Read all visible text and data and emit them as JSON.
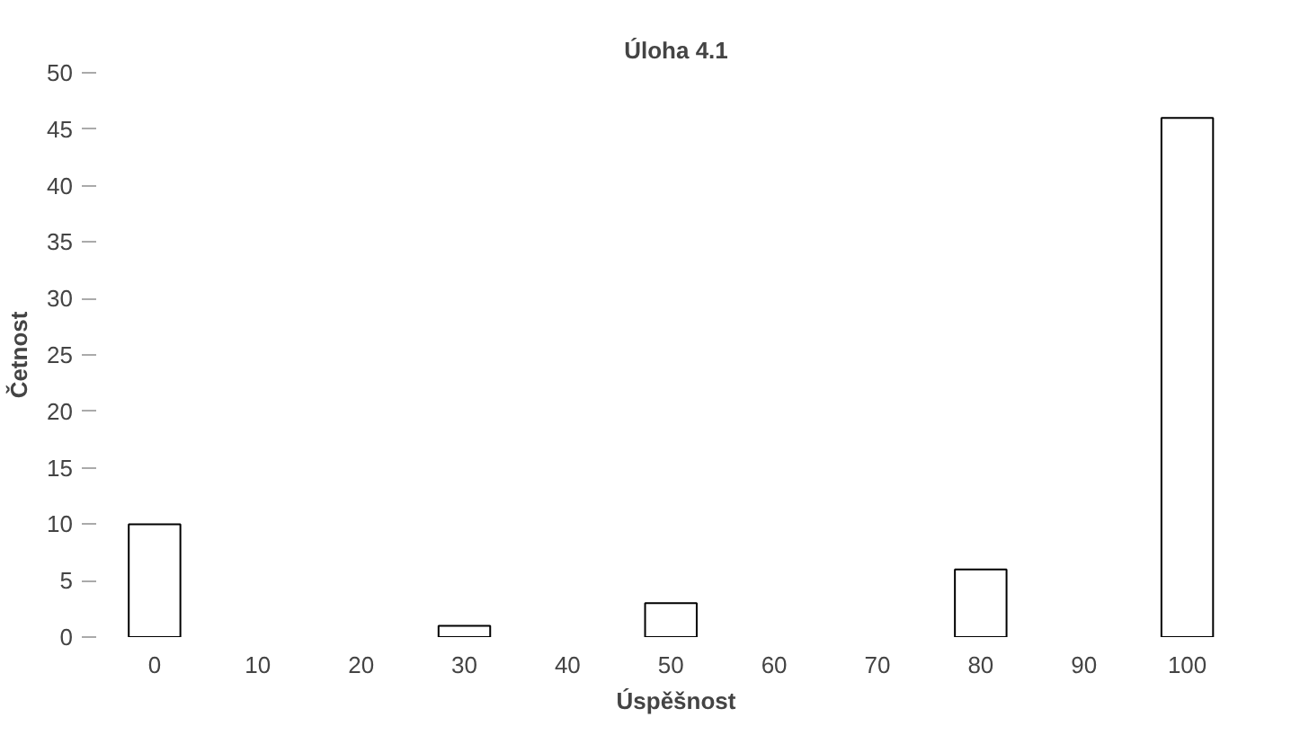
{
  "chart_data": {
    "type": "bar",
    "title": "Úloha 4.1",
    "xlabel": "Úspěšnost",
    "ylabel": "Četnost",
    "categories": [
      "0",
      "10",
      "20",
      "30",
      "40",
      "50",
      "60",
      "70",
      "80",
      "90",
      "100"
    ],
    "values": [
      10,
      null,
      null,
      1,
      null,
      3,
      null,
      null,
      6,
      null,
      46
    ],
    "color": "#ffffff",
    "ylim": [
      0,
      50
    ],
    "yticks": [
      0,
      5,
      10,
      15,
      20,
      25,
      30,
      35,
      40,
      45,
      50
    ],
    "grid": false
  }
}
